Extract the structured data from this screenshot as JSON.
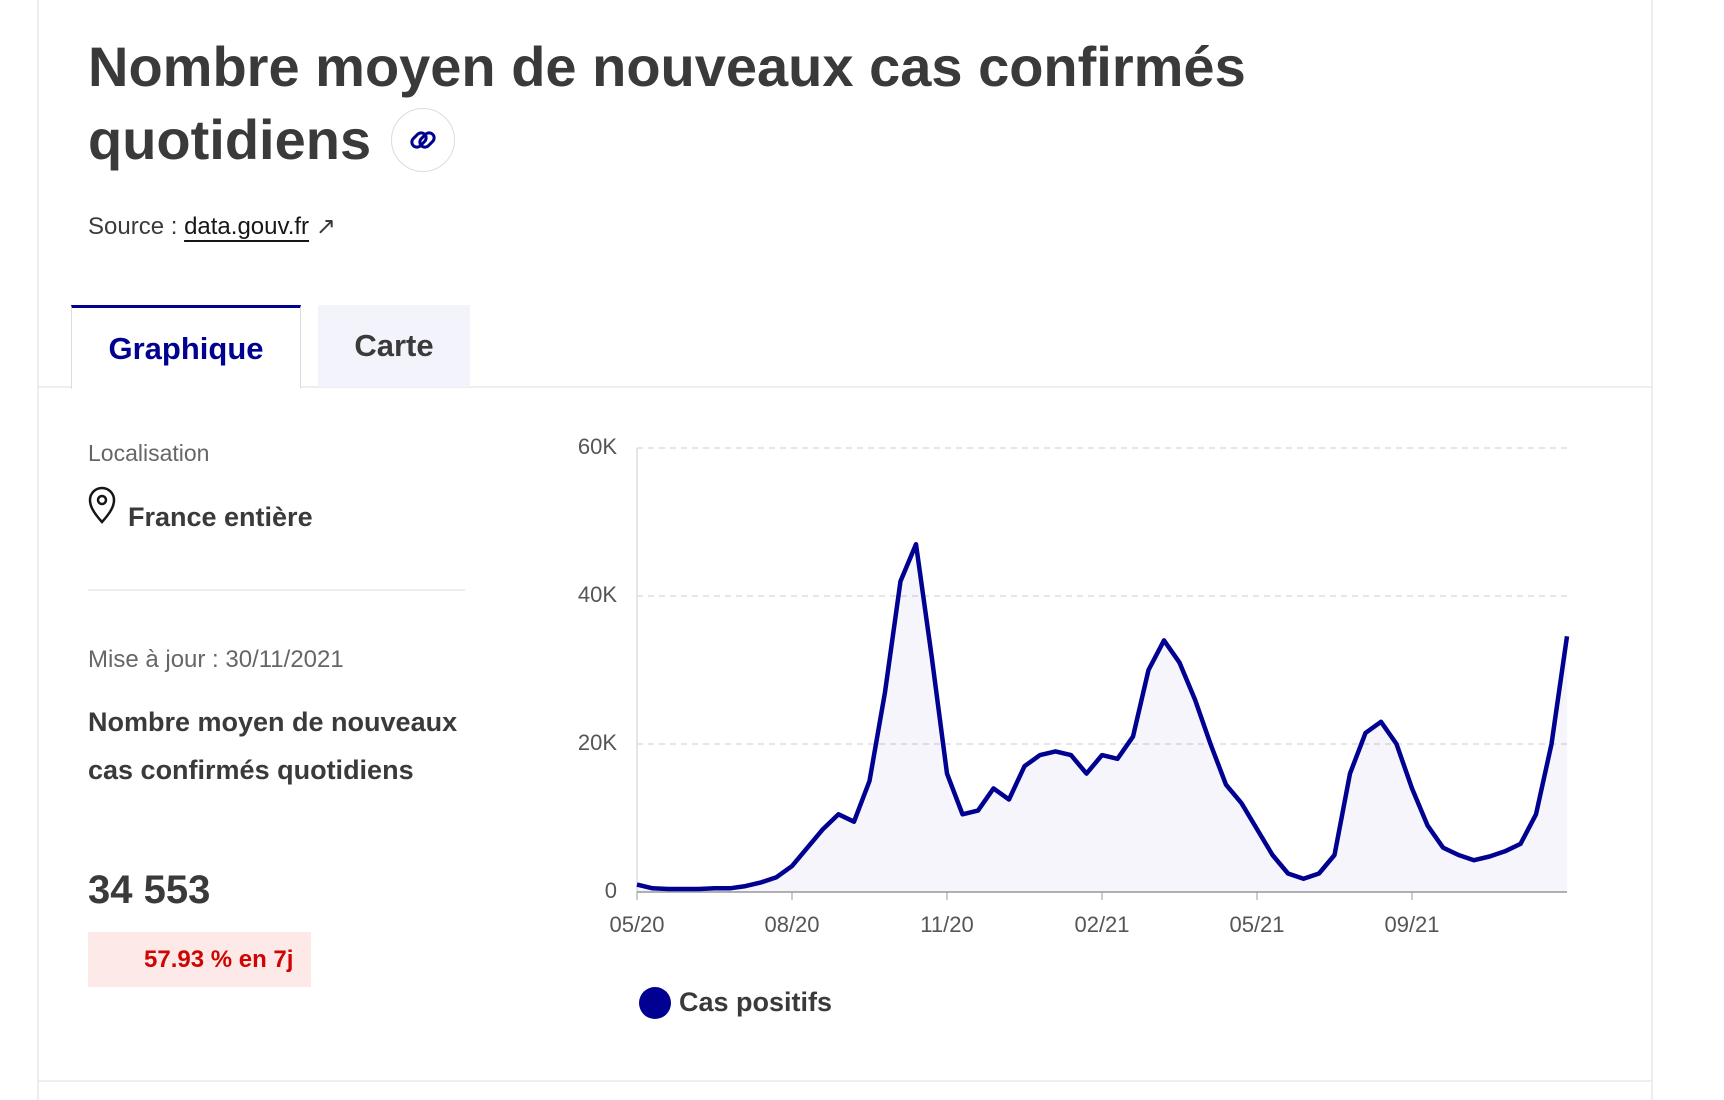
{
  "header": {
    "title": "Nombre moyen de nouveaux cas confirmés quotidiens",
    "source_label": "Source :",
    "source_link": "data.gouv.fr"
  },
  "tabs": [
    "Graphique",
    "Carte"
  ],
  "sidebar": {
    "location_label": "Localisation",
    "location": "France entière",
    "updated": "Mise à jour : 30/11/2021",
    "indicator": "Nombre moyen de nouveaux cas confirmés quotidiens",
    "value": "34 553",
    "change": "57.93 % en 7j"
  },
  "chart_data": {
    "type": "line",
    "categories": [
      "05/20",
      null,
      null,
      null,
      null,
      null,
      null,
      null,
      null,
      null,
      "08/20",
      null,
      null,
      null,
      null,
      null,
      null,
      null,
      null,
      null,
      "11/20",
      null,
      null,
      null,
      null,
      null,
      null,
      null,
      null,
      null,
      "02/21",
      null,
      null,
      null,
      null,
      null,
      null,
      null,
      null,
      null,
      "05/21",
      null,
      null,
      null,
      null,
      null,
      null,
      null,
      null,
      null,
      "09/21",
      null,
      null,
      null,
      null,
      null,
      null,
      null,
      null,
      null,
      null
    ],
    "series": [
      {
        "name": "Cas positifs",
        "color": "#000091",
        "values": [
          1000,
          500,
          400,
          400,
          400,
          500,
          500,
          800,
          1300,
          2000,
          3500,
          6000,
          8500,
          10500,
          9500,
          15000,
          27000,
          42000,
          47000,
          32000,
          16000,
          10500,
          11000,
          14000,
          12500,
          17000,
          18500,
          19000,
          18500,
          16000,
          18500,
          18000,
          21000,
          30000,
          34000,
          31000,
          26000,
          20000,
          14500,
          12000,
          8500,
          5000,
          2500,
          1800,
          2500,
          5000,
          16000,
          21500,
          23000,
          20000,
          14000,
          9000,
          6000,
          5000,
          4300,
          4800,
          5500,
          6500,
          10500,
          20000,
          34553
        ]
      }
    ],
    "ylim": [
      0,
      60000
    ],
    "yticks": [
      0,
      {
        "value": 20000,
        "label": "20K"
      },
      {
        "value": 40000,
        "label": "40K"
      },
      {
        "value": 60000,
        "label": "60K"
      }
    ],
    "grid": true
  }
}
